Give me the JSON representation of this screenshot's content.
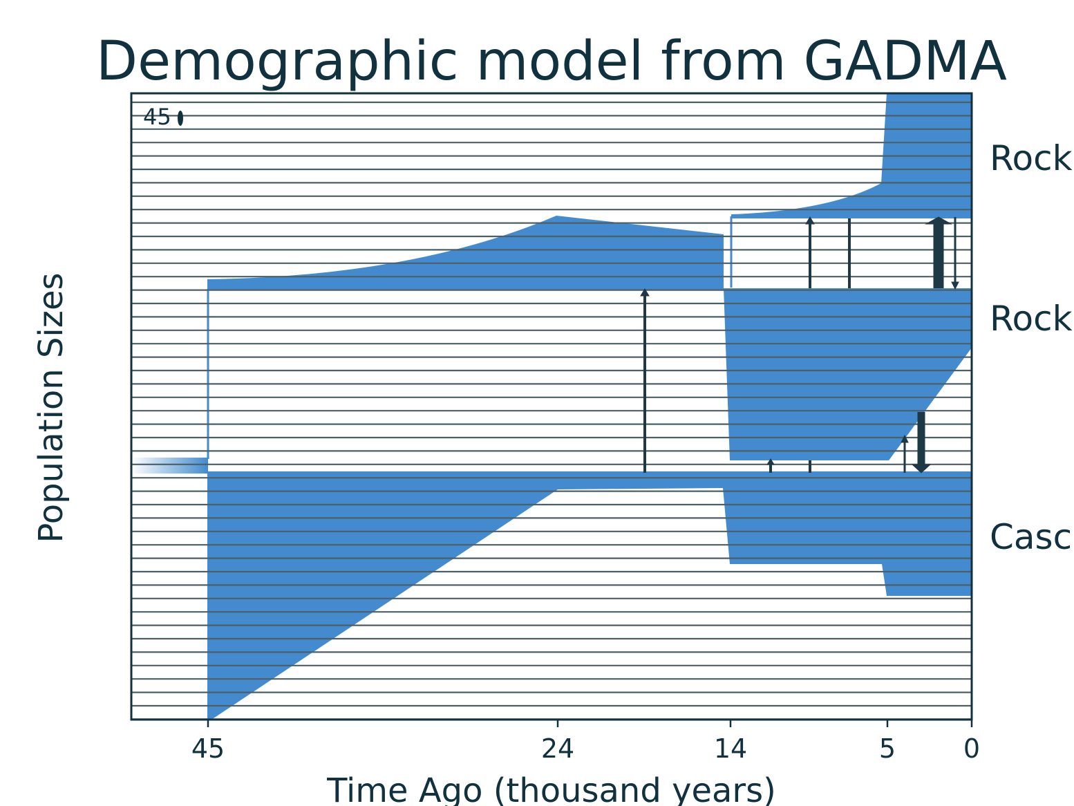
{
  "chart_data": {
    "type": "demographic-model",
    "title": "Demographic model from GADMA",
    "xlabel": "Time Ago (thousand years)",
    "ylabel": "Population Sizes",
    "x_ticks": [
      45,
      24,
      14,
      5,
      0
    ],
    "x_tick_labels": [
      "45",
      "24",
      "14",
      "5",
      "0"
    ],
    "size_scale_label": "45",
    "populations": [
      "Rock",
      "Rock",
      "Casc"
    ],
    "split_times": [
      45,
      14
    ],
    "size_change_times": [
      24,
      14,
      5
    ],
    "migration_times": [
      19,
      12,
      9.5,
      7.3,
      5,
      3,
      2,
      1
    ],
    "grid": true,
    "colors": {
      "population_fill": "#438bce",
      "grid_line": "#4d5f66",
      "axis": "#11313e",
      "migration_arrow": "#1e3846"
    }
  }
}
